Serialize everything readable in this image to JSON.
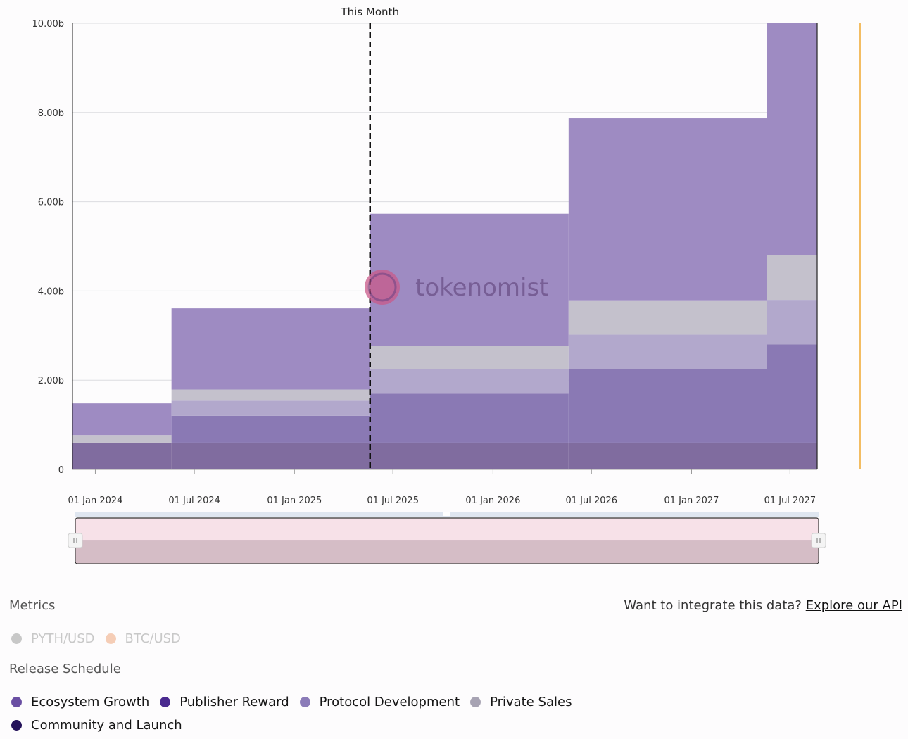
{
  "chart_data": {
    "type": "area",
    "stacked": true,
    "step": true,
    "annotation": "This Month",
    "annotation_date": "2025-05-20",
    "watermark": "tokenomist",
    "y_ticks": [
      "0",
      "2.00b",
      "4.00b",
      "6.00b",
      "8.00b",
      "10.00b"
    ],
    "y_tick_values": [
      0,
      2000000000,
      4000000000,
      6000000000,
      8000000000,
      10000000000
    ],
    "ylim": [
      0,
      10000000000
    ],
    "x_ticks": [
      "01 Jan 2024",
      "01 Jul 2024",
      "01 Jan 2025",
      "01 Jul 2025",
      "01 Jan 2026",
      "01 Jul 2026",
      "01 Jan 2027",
      "01 Jul 2027"
    ],
    "x_tick_dates": [
      "2024-01-01",
      "2024-07-01",
      "2025-01-01",
      "2025-07-01",
      "2026-01-01",
      "2026-07-01",
      "2027-01-01",
      "2027-07-01"
    ],
    "x_range": [
      "2023-11-20",
      "2027-08-20"
    ],
    "step_dates": [
      "2023-11-20",
      "2024-05-20",
      "2025-05-20",
      "2026-05-20",
      "2027-05-20",
      "2027-08-20"
    ],
    "series": [
      {
        "name": "Community and Launch",
        "color": "#806c9f",
        "values": [
          600000000,
          600000000,
          600000000,
          600000000,
          600000000
        ]
      },
      {
        "name": "Publisher Reward",
        "color": "#8a79b4",
        "values": [
          0,
          600000000,
          1100000000,
          1650000000,
          2200000000
        ]
      },
      {
        "name": "Protocol Development",
        "color": "#b2a8cc",
        "values": [
          0,
          340000000,
          550000000,
          770000000,
          1000000000
        ]
      },
      {
        "name": "Private Sales",
        "color": "#c4c1cc",
        "values": [
          170000000,
          250000000,
          520000000,
          770000000,
          1000000000
        ]
      },
      {
        "name": "Ecosystem Growth",
        "color": "#9e8bc2",
        "values": [
          710000000,
          1820000000,
          2960000000,
          4080000000,
          5200000000
        ]
      }
    ]
  },
  "navigator": {
    "label": "date range navigator"
  },
  "legend": {
    "metrics_title": "Metrics",
    "api_prompt": "Want to integrate this data?",
    "api_link": "Explore our API",
    "metrics": [
      {
        "label": "PYTH/USD",
        "color": "#c8c8c8"
      },
      {
        "label": "BTC/USD",
        "color": "#f5cdb6"
      }
    ],
    "release_title": "Release Schedule",
    "release": [
      {
        "label": "Ecosystem Growth",
        "color": "#6a4fa3"
      },
      {
        "label": "Publisher Reward",
        "color": "#4a2a8f"
      },
      {
        "label": "Protocol Development",
        "color": "#8b7bb8"
      },
      {
        "label": "Private Sales",
        "color": "#a7a3b3"
      },
      {
        "label": "Community and Launch",
        "color": "#24125a"
      }
    ]
  }
}
